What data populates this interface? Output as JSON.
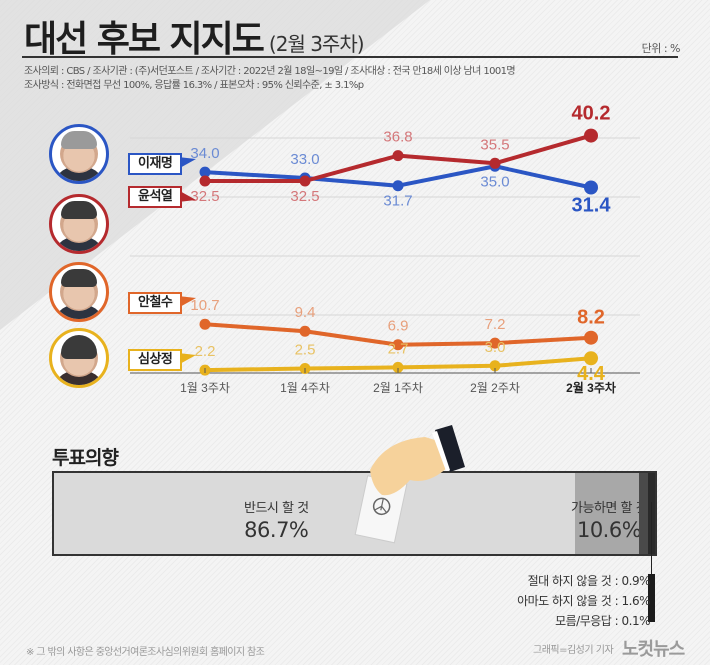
{
  "header": {
    "title": "대선 후보 지지도",
    "subtitle": "(2월 3주차)",
    "unit": "단위 : %",
    "meta_line1": "조사의뢰 : CBS / 조사기관 : (주)서던포스트 / 조사기간 : 2022년 2월 18일~19일 / 조사대상 : 전국 만18세 이상 남녀 1001명",
    "meta_line2": "조사방식 : 전화면접 무선 100%, 응답률 16.3% / 표본오차 : 95% 신뢰수준, ± 3.1%p"
  },
  "candidates": [
    {
      "name": "이재명",
      "color": "#2b56c4",
      "label_color": "#6b8bd4"
    },
    {
      "name": "윤석열",
      "color": "#b52a2e",
      "label_color": "#d4777a"
    },
    {
      "name": "안철수",
      "color": "#e0662a",
      "label_color": "#e8a07c"
    },
    {
      "name": "심상정",
      "color": "#e8b21e",
      "label_color": "#e8c264"
    }
  ],
  "chart_data": {
    "type": "line",
    "title": "대선 후보 지지도 (2월 3주차)",
    "xlabel": "",
    "ylabel": "단위 : %",
    "categories": [
      "1월 3주차",
      "1월 4주차",
      "2월 1주차",
      "2월 2주차",
      "2월 3주차"
    ],
    "series": [
      {
        "name": "이재명",
        "values": [
          34.0,
          33.0,
          31.7,
          35.0,
          31.4
        ],
        "color": "#2b56c4"
      },
      {
        "name": "윤석열",
        "values": [
          32.5,
          32.5,
          36.8,
          35.5,
          40.2
        ],
        "color": "#b52a2e"
      },
      {
        "name": "안철수",
        "values": [
          10.7,
          9.4,
          6.9,
          7.2,
          8.2
        ],
        "color": "#e0662a"
      },
      {
        "name": "심상정",
        "values": [
          2.2,
          2.5,
          2.7,
          3.0,
          4.4
        ],
        "color": "#e8b21e"
      }
    ],
    "value_labels": {
      "이재명": [
        "34.0",
        "33.0",
        "31.7",
        "35.0",
        "31.4"
      ],
      "윤석열": [
        "32.5",
        "32.5",
        "36.8",
        "35.5",
        "40.2"
      ],
      "안철수": [
        "10.7",
        "9.4",
        "6.9",
        "7.2",
        "8.2"
      ],
      "심상정": [
        "2.2",
        "2.5",
        "2.7",
        "3.0",
        "4.4"
      ]
    },
    "grid": true,
    "legend_position": "left (name tags with photos)"
  },
  "vote_intention": {
    "title": "투표의향",
    "segments": [
      {
        "label": "반드시 할 것",
        "value": "86.7%",
        "pct": 86.7,
        "color": "#dadada"
      },
      {
        "label": "가능하면 할 것",
        "value": "10.6%",
        "pct": 10.6,
        "color": "#a8a8a8"
      },
      {
        "label": "아마도 하지 않을 것",
        "value": "1.6%",
        "pct": 1.6,
        "color": "#4a4a4a"
      },
      {
        "label": "절대 하지 않을 것",
        "value": "0.9%",
        "pct": 0.9,
        "color": "#2a2a2a"
      },
      {
        "label": "모름/무응답",
        "value": "0.1%",
        "pct": 0.1,
        "color": "#1c1c1c"
      }
    ],
    "small_lines": [
      "절대 하지 않을 것 : 0.9%",
      "아마도 하지 않을 것 : 1.6%",
      "모름/무응답 : 0.1%"
    ]
  },
  "footer": {
    "note": "※ 그 밖의 사항은 중앙선거여론조사심의위원회 홈페이지 참조",
    "credit": "그래픽=김성기 기자",
    "logo": "노컷뉴스"
  }
}
